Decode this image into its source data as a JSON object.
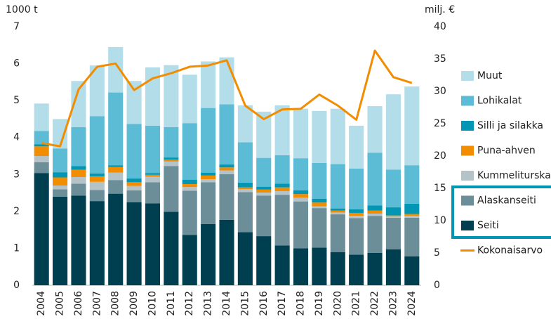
{
  "chart_data": {
    "type": "bar",
    "y_label": "1000 t",
    "y2_label": "milj. €",
    "categories": [
      "2004",
      "2005",
      "2006",
      "2007",
      "2008",
      "2009",
      "2010",
      "2011",
      "2012",
      "2013",
      "2014",
      "2015",
      "2016",
      "2017",
      "2018",
      "2019",
      "2020",
      "2021",
      "2022",
      "2023",
      "2024"
    ],
    "stacked": true,
    "series": [
      {
        "name": "Seiti",
        "color": "#003f4f",
        "values": [
          3.04,
          2.4,
          2.43,
          2.28,
          2.48,
          2.25,
          2.22,
          1.99,
          1.36,
          1.66,
          1.77,
          1.44,
          1.33,
          1.08,
          1.0,
          1.02,
          0.9,
          0.83,
          0.88,
          0.97,
          0.78
        ]
      },
      {
        "name": "Alaskanseiti",
        "color": "#6b8e98",
        "values": [
          0.29,
          0.2,
          0.32,
          0.3,
          0.37,
          0.32,
          0.57,
          1.24,
          1.2,
          1.13,
          1.24,
          1.08,
          1.1,
          1.37,
          1.27,
          1.07,
          1.02,
          0.99,
          1.0,
          0.86,
          1.05
        ]
      },
      {
        "name": "Kummeliturska",
        "color": "#b3c3c8",
        "values": [
          0.17,
          0.1,
          0.18,
          0.22,
          0.2,
          0.12,
          0.15,
          0.12,
          0.1,
          0.08,
          0.1,
          0.08,
          0.08,
          0.1,
          0.1,
          0.05,
          0.05,
          0.06,
          0.06,
          0.03,
          0.05
        ]
      },
      {
        "name": "Puna-ahven",
        "color": "#f28c00",
        "values": [
          0.26,
          0.22,
          0.2,
          0.15,
          0.15,
          0.1,
          0.05,
          0.05,
          0.08,
          0.1,
          0.08,
          0.05,
          0.08,
          0.1,
          0.1,
          0.1,
          0.05,
          0.08,
          0.08,
          0.03,
          0.05
        ]
      },
      {
        "name": "Silli ja silakka",
        "color": "#0096b4",
        "values": [
          0.06,
          0.14,
          0.1,
          0.08,
          0.05,
          0.1,
          0.05,
          0.06,
          0.12,
          0.08,
          0.08,
          0.13,
          0.08,
          0.1,
          0.1,
          0.1,
          0.06,
          0.1,
          0.14,
          0.22,
          0.28
        ]
      },
      {
        "name": "Lohikalat",
        "color": "#5cbcd6",
        "values": [
          0.36,
          0.64,
          1.05,
          1.55,
          1.97,
          1.48,
          1.28,
          0.82,
          1.53,
          1.75,
          1.63,
          1.09,
          0.78,
          0.77,
          0.87,
          0.97,
          1.2,
          1.1,
          1.43,
          1.02,
          1.04
        ]
      },
      {
        "name": "Muut",
        "color": "#b2dde9",
        "values": [
          0.74,
          0.8,
          1.25,
          1.37,
          1.23,
          1.16,
          1.58,
          1.68,
          1.31,
          1.26,
          1.27,
          1.0,
          1.25,
          1.35,
          1.34,
          1.41,
          1.5,
          1.16,
          1.26,
          2.04,
          2.13
        ]
      },
      {
        "name": "Kokonaisarvo",
        "type": "line",
        "axis": "y2",
        "color": "#f28c00",
        "values": [
          22,
          21.5,
          30.3,
          33.8,
          34.3,
          30.2,
          32,
          32.8,
          33.8,
          34,
          34.8,
          27.8,
          25.7,
          27.2,
          27.3,
          29.5,
          27.8,
          25.6,
          36.3,
          32.2,
          31.3
        ]
      }
    ],
    "ylim": [
      0,
      7
    ],
    "yticks": [
      0,
      1,
      2,
      3,
      4,
      5,
      6,
      7
    ],
    "y2lim": [
      0,
      40
    ],
    "y2ticks": [
      0,
      5,
      10,
      15,
      20,
      25,
      30,
      35,
      40
    ],
    "grid": false,
    "legend": "right"
  }
}
